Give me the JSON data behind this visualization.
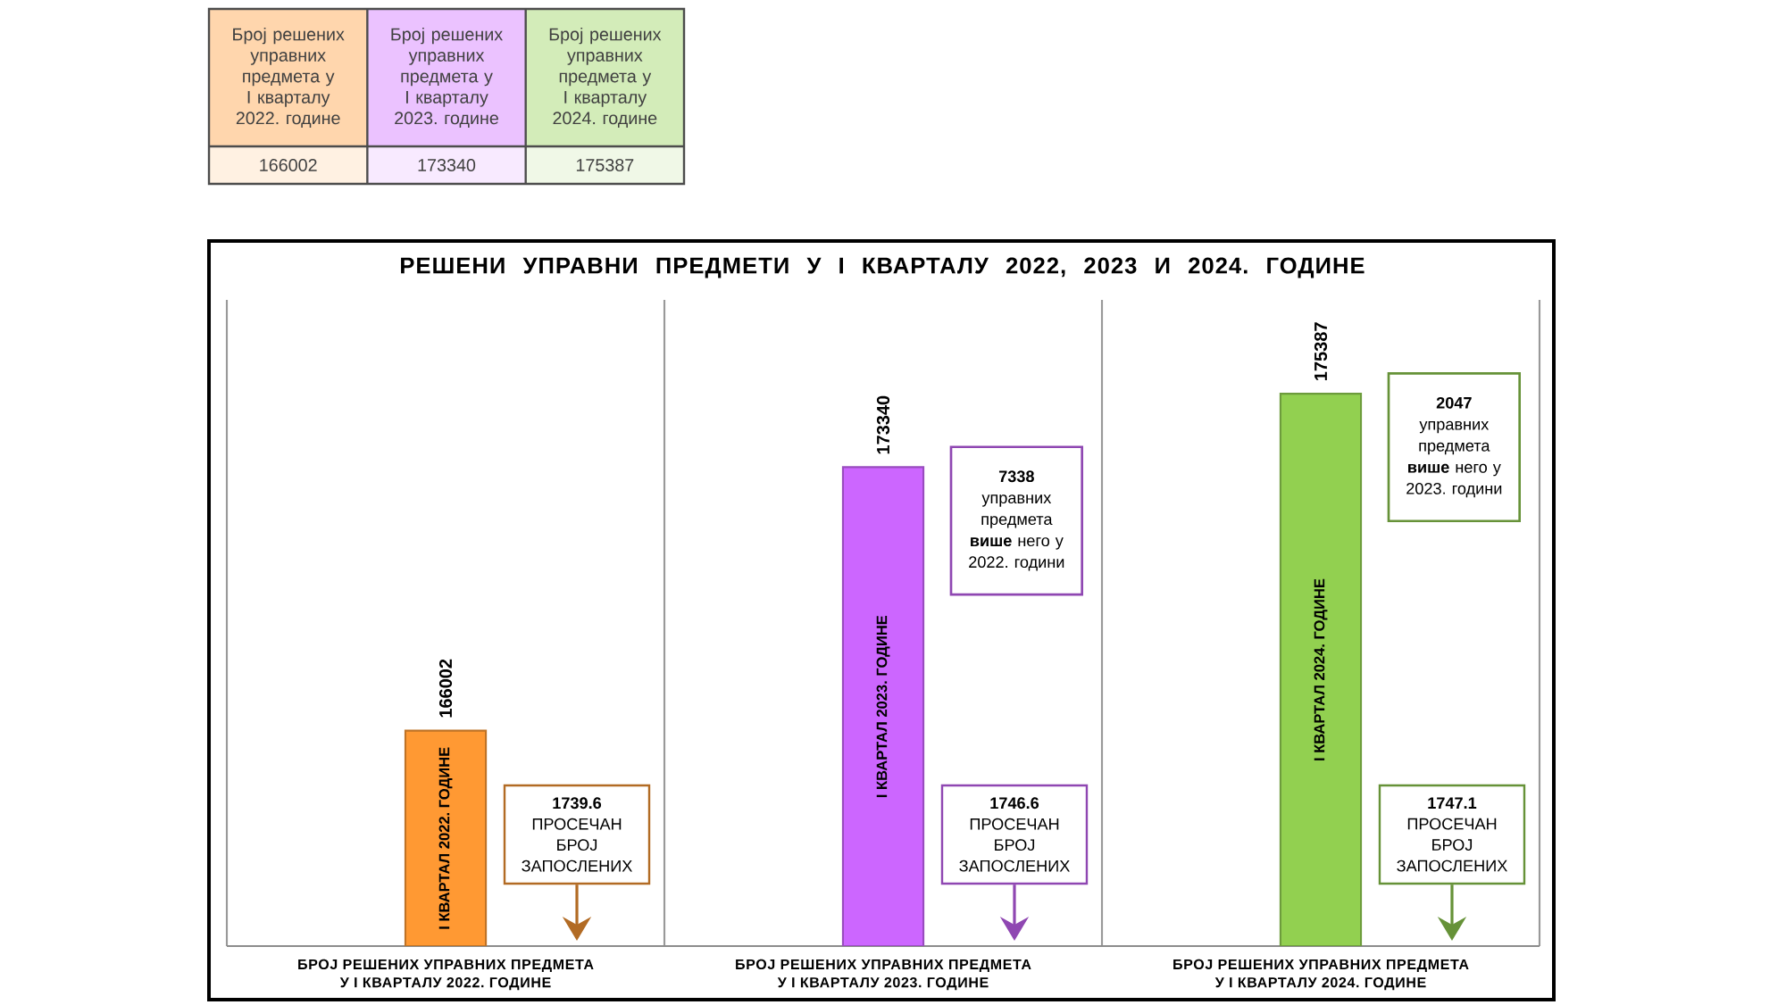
{
  "chart_data": {
    "type": "bar",
    "title": "РЕШЕНИ УПРАВНИ ПРЕДМЕТИ У I КВАРТАЛУ 2022, 2023 И 2024. ГОДИНЕ",
    "categories": [
      "БРОЈ РЕШЕНИХ УПРАВНИХ ПРЕДМЕТА У I КВАРТАЛУ 2022. ГОДИНЕ",
      "БРОЈ РЕШЕНИХ УПРАВНИХ ПРЕДМЕТА У I КВАРТАЛУ 2023. ГОДИНЕ",
      "БРОЈ РЕШЕНИХ УПРАВНИХ ПРЕДМЕТА У I КВАРТАЛУ 2024. ГОДИНЕ"
    ],
    "values": [
      166002,
      173340,
      175387
    ],
    "value_labels": [
      "166002",
      "173340",
      "175387"
    ],
    "colors": [
      "#ff9933",
      "#cc66ff",
      "#92d050"
    ],
    "ylim": [
      160000,
      178000
    ],
    "tick_labels": "x",
    "grid": "x",
    "annotations": [
      "I КВАРТАЛ 2022. ГОДИНЕ",
      "I КВАРТАЛ 2023. ГОДИНЕ",
      "I КВАРТАЛ 2024. ГОДИНЕ",
      "Број решених управних предмета у I кварталу 2022. године",
      "Број решених управних предмета у I кварталу 2023. године",
      "Број решених управних предмета у I кварталу 2024. године",
      "**7338** управних предмета **више** него у 2022. години",
      "**2047** управних предмета **више** него у 2023. години",
      "**1739.6** ПРОСЕЧАН БРОЈ ЗАПОСЛЕНИХ",
      "**1746.6** ПРОСЕЧАН БРОЈ ЗАПОСЛЕНИХ",
      "**1747.1** ПРОСЕЧАН БРОЈ ЗАПОСЛЕНИХ"
    ]
  }
}
